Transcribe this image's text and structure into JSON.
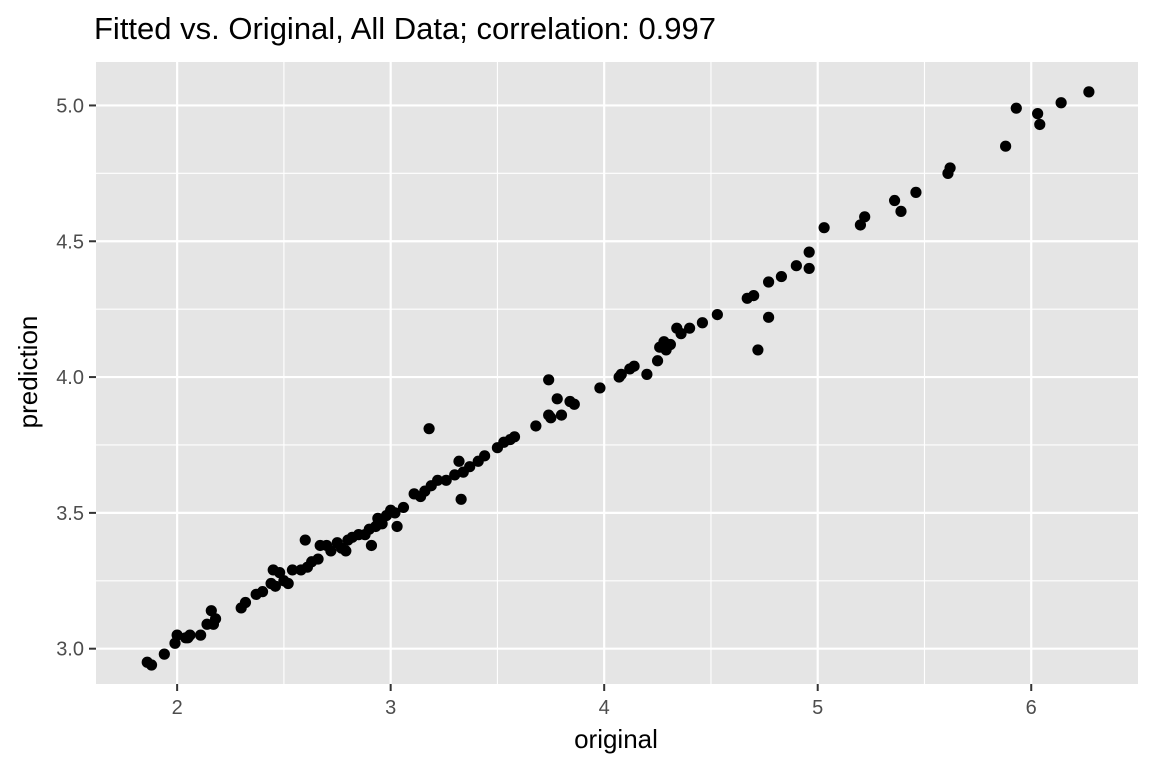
{
  "chart_data": {
    "type": "scatter",
    "title": "Fitted vs. Original, All Data; correlation:  0.997",
    "xlabel": "original",
    "ylabel": "prediction",
    "xlim": [
      1.62,
      6.5
    ],
    "ylim": [
      2.87,
      5.16
    ],
    "x_ticks": [
      2,
      3,
      4,
      5,
      6
    ],
    "x_tick_labels": [
      "2",
      "3",
      "4",
      "5",
      "6"
    ],
    "y_ticks": [
      3.0,
      3.5,
      4.0,
      4.5,
      5.0
    ],
    "y_tick_labels": [
      "3.0",
      "3.5",
      "4.0",
      "4.5",
      "5.0"
    ],
    "grid": true,
    "colors": {
      "panel": "#e5e5e5",
      "grid": "#ffffff",
      "point": "#000000",
      "tick_text": "#4d4d4d"
    },
    "points": [
      [
        1.86,
        2.95
      ],
      [
        1.88,
        2.94
      ],
      [
        1.94,
        2.98
      ],
      [
        1.99,
        3.02
      ],
      [
        2.0,
        3.05
      ],
      [
        2.04,
        3.04
      ],
      [
        2.05,
        3.04
      ],
      [
        2.06,
        3.05
      ],
      [
        2.11,
        3.05
      ],
      [
        2.14,
        3.09
      ],
      [
        2.16,
        3.14
      ],
      [
        2.17,
        3.09
      ],
      [
        2.18,
        3.11
      ],
      [
        2.3,
        3.15
      ],
      [
        2.32,
        3.17
      ],
      [
        2.37,
        3.2
      ],
      [
        2.4,
        3.21
      ],
      [
        2.44,
        3.24
      ],
      [
        2.45,
        3.29
      ],
      [
        2.46,
        3.23
      ],
      [
        2.48,
        3.28
      ],
      [
        2.5,
        3.25
      ],
      [
        2.52,
        3.24
      ],
      [
        2.54,
        3.29
      ],
      [
        2.58,
        3.29
      ],
      [
        2.6,
        3.4
      ],
      [
        2.61,
        3.3
      ],
      [
        2.63,
        3.32
      ],
      [
        2.66,
        3.33
      ],
      [
        2.67,
        3.38
      ],
      [
        2.7,
        3.38
      ],
      [
        2.72,
        3.36
      ],
      [
        2.75,
        3.39
      ],
      [
        2.77,
        3.37
      ],
      [
        2.79,
        3.36
      ],
      [
        2.8,
        3.4
      ],
      [
        2.82,
        3.41
      ],
      [
        2.85,
        3.42
      ],
      [
        2.88,
        3.42
      ],
      [
        2.9,
        3.44
      ],
      [
        2.91,
        3.38
      ],
      [
        2.93,
        3.45
      ],
      [
        2.94,
        3.48
      ],
      [
        2.96,
        3.46
      ],
      [
        2.98,
        3.49
      ],
      [
        3.0,
        3.51
      ],
      [
        3.02,
        3.5
      ],
      [
        3.03,
        3.45
      ],
      [
        3.06,
        3.52
      ],
      [
        3.11,
        3.57
      ],
      [
        3.14,
        3.56
      ],
      [
        3.16,
        3.58
      ],
      [
        3.18,
        3.81
      ],
      [
        3.19,
        3.6
      ],
      [
        3.22,
        3.62
      ],
      [
        3.26,
        3.62
      ],
      [
        3.3,
        3.64
      ],
      [
        3.32,
        3.69
      ],
      [
        3.33,
        3.55
      ],
      [
        3.34,
        3.65
      ],
      [
        3.37,
        3.67
      ],
      [
        3.41,
        3.69
      ],
      [
        3.44,
        3.71
      ],
      [
        3.5,
        3.74
      ],
      [
        3.53,
        3.76
      ],
      [
        3.56,
        3.77
      ],
      [
        3.58,
        3.78
      ],
      [
        3.68,
        3.82
      ],
      [
        3.74,
        3.86
      ],
      [
        3.74,
        3.99
      ],
      [
        3.75,
        3.85
      ],
      [
        3.78,
        3.92
      ],
      [
        3.8,
        3.86
      ],
      [
        3.84,
        3.91
      ],
      [
        3.86,
        3.9
      ],
      [
        3.98,
        3.96
      ],
      [
        4.07,
        4.0
      ],
      [
        4.08,
        4.01
      ],
      [
        4.12,
        4.03
      ],
      [
        4.14,
        4.04
      ],
      [
        4.2,
        4.01
      ],
      [
        4.25,
        4.06
      ],
      [
        4.26,
        4.11
      ],
      [
        4.28,
        4.13
      ],
      [
        4.29,
        4.1
      ],
      [
        4.31,
        4.12
      ],
      [
        4.34,
        4.18
      ],
      [
        4.36,
        4.16
      ],
      [
        4.4,
        4.18
      ],
      [
        4.46,
        4.2
      ],
      [
        4.53,
        4.23
      ],
      [
        4.67,
        4.29
      ],
      [
        4.7,
        4.3
      ],
      [
        4.72,
        4.1
      ],
      [
        4.77,
        4.22
      ],
      [
        4.77,
        4.35
      ],
      [
        4.83,
        4.37
      ],
      [
        4.9,
        4.41
      ],
      [
        4.96,
        4.4
      ],
      [
        4.96,
        4.46
      ],
      [
        5.03,
        4.55
      ],
      [
        5.2,
        4.56
      ],
      [
        5.22,
        4.59
      ],
      [
        5.36,
        4.65
      ],
      [
        5.39,
        4.61
      ],
      [
        5.46,
        4.68
      ],
      [
        5.61,
        4.75
      ],
      [
        5.62,
        4.77
      ],
      [
        5.88,
        4.85
      ],
      [
        5.93,
        4.99
      ],
      [
        6.03,
        4.97
      ],
      [
        6.04,
        4.93
      ],
      [
        6.14,
        5.01
      ],
      [
        6.27,
        5.05
      ]
    ]
  }
}
